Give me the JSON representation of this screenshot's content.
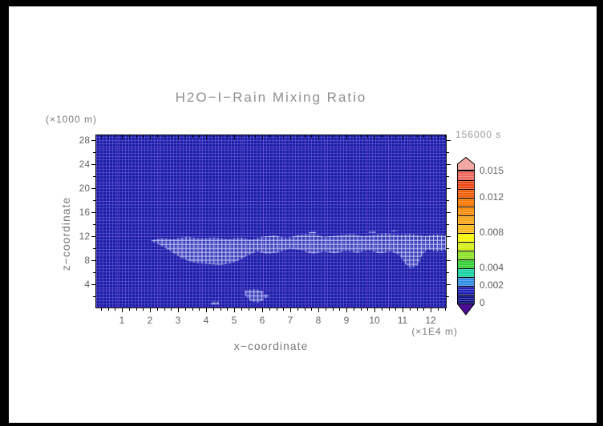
{
  "page": {
    "frame_color": "#000000",
    "background": "#ffffff"
  },
  "title": "H2O−I−Rain Mixing Ratio",
  "time_label": "156000 s",
  "axes": {
    "x": {
      "label": "x−coordinate",
      "unit": "(×1E4 m)",
      "ticks": [
        1,
        2,
        3,
        4,
        5,
        6,
        7,
        8,
        9,
        10,
        11,
        12
      ],
      "range": [
        0,
        12.57
      ],
      "minor_step": 0.25
    },
    "y": {
      "label": "z−coordinate",
      "unit": "(×1000 m)",
      "ticks": [
        4,
        8,
        12,
        16,
        20,
        24,
        28
      ],
      "range": [
        0,
        28.93
      ],
      "minor_step": 2
    }
  },
  "colorbar": {
    "labels": [
      {
        "text": "0.015",
        "level": 0.015
      },
      {
        "text": "0.012",
        "level": 0.012
      },
      {
        "text": "0.008",
        "level": 0.008
      },
      {
        "text": "0.004",
        "level": 0.004
      },
      {
        "text": "0.002",
        "level": 0.002
      },
      {
        "text": "0",
        "level": 0
      }
    ],
    "segment_value_step": 0.001,
    "segment_colors_bottom_to_top": [
      "#141488",
      "#2020b8",
      "#2e8ee6",
      "#16d2a2",
      "#34d034",
      "#8ce226",
      "#d4ee14",
      "#f8f600",
      "#fbb81c",
      "#f9a214",
      "#f78c0a",
      "#f57600",
      "#f15c04",
      "#ec4614",
      "#ef685c"
    ],
    "top_arrow_color": "#f4a8a4",
    "bottom_arrow_color": "#4b0d94"
  },
  "plot_style": {
    "base_color": "#1d1da6",
    "hatch_line_color": "rgba(215,221,248,0.85)",
    "hatch_base_color": "rgba(150,160,235,0.22)"
  },
  "chart_data": {
    "type": "heatmap",
    "title": "H2O−I−Rain Mixing Ratio",
    "time": "156000 s",
    "xlabel": "x−coordinate",
    "x_unit": "(×1E4 m)",
    "ylabel": "z−coordinate",
    "y_unit": "(×1000 m)",
    "x_range": [
      0,
      12.57
    ],
    "y_range": [
      0,
      28.93
    ],
    "x_ticks": [
      1,
      2,
      3,
      4,
      5,
      6,
      7,
      8,
      9,
      10,
      11,
      12
    ],
    "y_ticks": [
      4,
      8,
      12,
      16,
      20,
      24,
      28
    ],
    "colorbar_labeled_levels": [
      0,
      0.002,
      0.004,
      0.008,
      0.012,
      0.015
    ],
    "colorbar_level_step": 0.001,
    "field_summary": "Rain mixing ratio is ~0 (lowest color level, dark blue) over nearly the whole domain; faint stippled regions mark values just above 0 (below 0.001).",
    "regions": [
      {
        "name": "anvil-band",
        "value_range": [
          0,
          0.001
        ],
        "polygon": [
          [
            2.0,
            11.2
          ],
          [
            2.35,
            11.7
          ],
          [
            2.8,
            11.5
          ],
          [
            3.3,
            11.9
          ],
          [
            3.8,
            11.6
          ],
          [
            4.3,
            11.8
          ],
          [
            4.8,
            11.5
          ],
          [
            5.2,
            11.8
          ],
          [
            5.6,
            11.4
          ],
          [
            6.0,
            11.9
          ],
          [
            6.4,
            12.1
          ],
          [
            6.9,
            11.7
          ],
          [
            7.3,
            12.2
          ],
          [
            7.8,
            12.4
          ],
          [
            8.2,
            11.9
          ],
          [
            8.7,
            12.1
          ],
          [
            9.2,
            12.4
          ],
          [
            9.6,
            12.0
          ],
          [
            10.0,
            12.2
          ],
          [
            10.4,
            12.5
          ],
          [
            10.9,
            12.2
          ],
          [
            11.3,
            12.4
          ],
          [
            11.8,
            12.0
          ],
          [
            12.2,
            12.3
          ],
          [
            12.57,
            12.1
          ],
          [
            12.57,
            9.6
          ],
          [
            12.2,
            9.4
          ],
          [
            11.9,
            9.8
          ],
          [
            11.7,
            8.6
          ],
          [
            11.55,
            7.0
          ],
          [
            11.3,
            6.6
          ],
          [
            11.1,
            7.4
          ],
          [
            10.9,
            8.9
          ],
          [
            10.6,
            9.4
          ],
          [
            10.2,
            9.1
          ],
          [
            9.8,
            9.6
          ],
          [
            9.4,
            9.2
          ],
          [
            9.0,
            9.5
          ],
          [
            8.6,
            9.1
          ],
          [
            8.2,
            9.4
          ],
          [
            7.8,
            9.0
          ],
          [
            7.4,
            9.6
          ],
          [
            7.0,
            9.9
          ],
          [
            6.6,
            9.3
          ],
          [
            6.2,
            9.0
          ],
          [
            5.8,
            9.4
          ],
          [
            5.5,
            8.8
          ],
          [
            5.2,
            8.0
          ],
          [
            4.9,
            7.4
          ],
          [
            4.5,
            7.2
          ],
          [
            4.0,
            7.3
          ],
          [
            3.6,
            7.5
          ],
          [
            3.2,
            8.1
          ],
          [
            2.9,
            8.9
          ],
          [
            2.6,
            9.8
          ],
          [
            2.3,
            10.6
          ]
        ]
      },
      {
        "name": "low-level-patch",
        "value_range": [
          0,
          0.001
        ],
        "polygon": [
          [
            5.4,
            2.9
          ],
          [
            5.75,
            3.1
          ],
          [
            6.0,
            2.8
          ],
          [
            6.1,
            2.2
          ],
          [
            6.25,
            2.0
          ],
          [
            6.1,
            1.5
          ],
          [
            5.9,
            0.8
          ],
          [
            5.6,
            1.0
          ],
          [
            5.45,
            1.7
          ],
          [
            5.35,
            2.3
          ]
        ]
      },
      {
        "name": "speck-low",
        "value_range": [
          0,
          0.001
        ],
        "polygon": [
          [
            4.15,
            1.0
          ],
          [
            4.45,
            1.0
          ],
          [
            4.45,
            0.5
          ],
          [
            4.15,
            0.5
          ]
        ]
      },
      {
        "name": "speck-top-1",
        "value_range": [
          0,
          0.001
        ],
        "polygon": [
          [
            7.7,
            12.7
          ],
          [
            7.95,
            12.75
          ],
          [
            7.9,
            12.45
          ],
          [
            7.65,
            12.5
          ]
        ]
      },
      {
        "name": "speck-top-2",
        "value_range": [
          0,
          0.001
        ],
        "polygon": [
          [
            9.85,
            12.8
          ],
          [
            10.1,
            12.85
          ],
          [
            10.05,
            12.55
          ],
          [
            9.8,
            12.6
          ]
        ]
      },
      {
        "name": "speck-top-3",
        "value_range": [
          0,
          0.001
        ],
        "polygon": [
          [
            10.6,
            12.95
          ],
          [
            10.85,
            13.0
          ],
          [
            10.8,
            12.7
          ],
          [
            10.55,
            12.75
          ]
        ]
      }
    ]
  }
}
